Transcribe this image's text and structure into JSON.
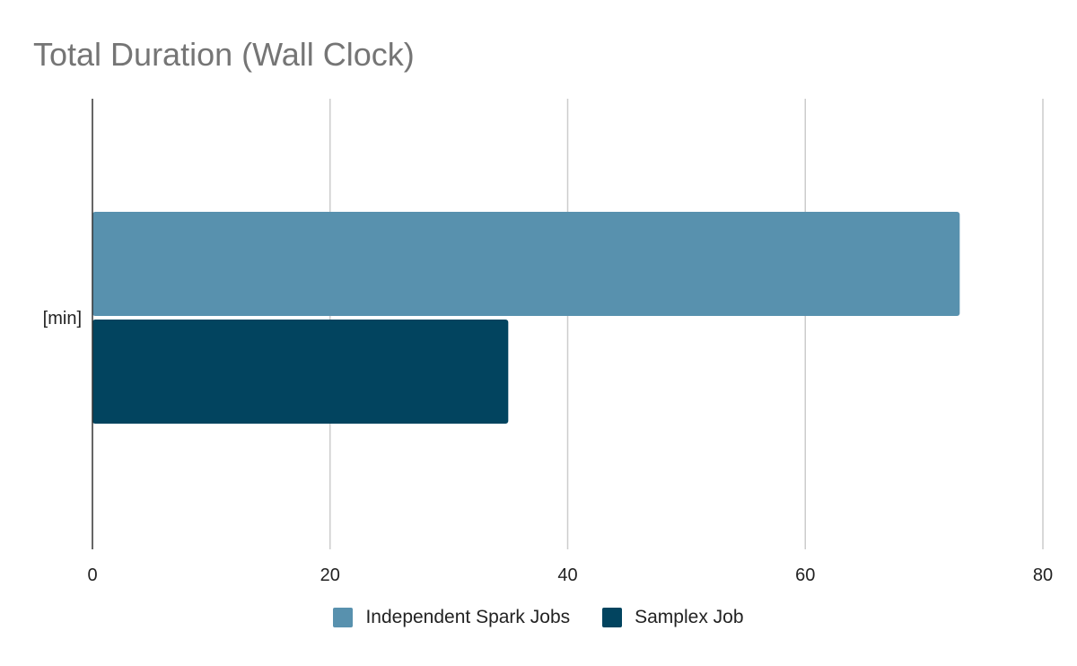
{
  "chart_data": {
    "type": "bar",
    "orientation": "horizontal",
    "title": "Total Duration (Wall Clock)",
    "categories": [
      "[min]"
    ],
    "series": [
      {
        "name": "Independent Spark Jobs",
        "values": [
          73
        ],
        "color": "#5891ae"
      },
      {
        "name": "Samplex Job",
        "values": [
          35
        ],
        "color": "#02445f"
      }
    ],
    "xlim": [
      0,
      80
    ],
    "xticks": [
      "0",
      "20",
      "40",
      "60",
      "80"
    ],
    "grid": true,
    "legend_position": "bottom"
  }
}
